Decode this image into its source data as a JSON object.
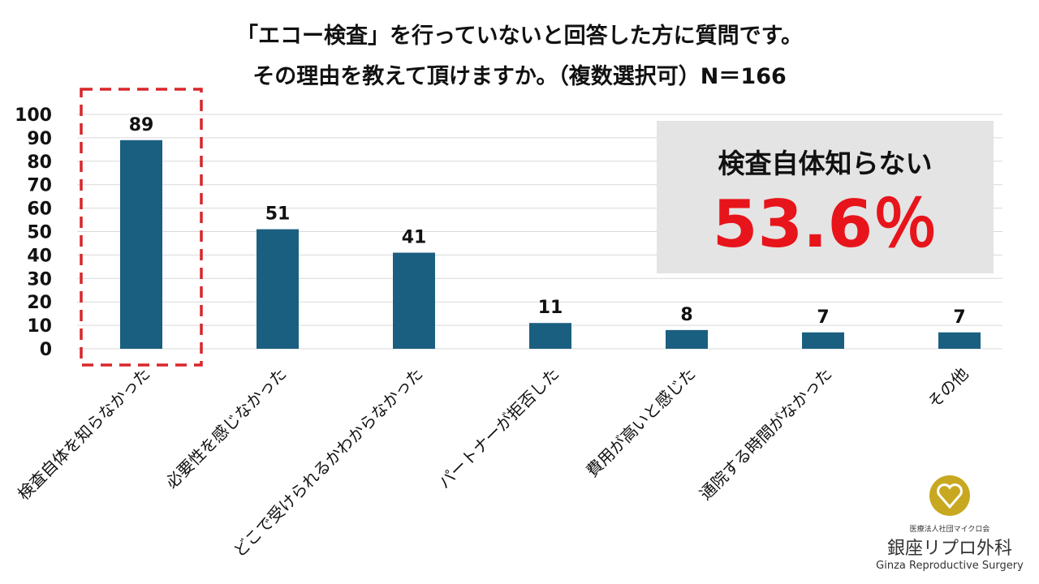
{
  "title_lines": [
    "「エコー検査」を行っていないと回答した方に質問です。",
    "その理由を教えて頂けますか。（複数選択可）N＝166"
  ],
  "chart_data": {
    "type": "bar",
    "title": "「エコー検査」を行っていないと回答した方に質問です。その理由を教えて頂けますか。（複数選択可）N＝166",
    "categories": [
      "検査自体を知らなかった",
      "必要性を感じなかった",
      "どこで受けられるかわからなかった",
      "パートナーが拒否した",
      "費用が高いと感じた",
      "通院する時間がなかった",
      "その他"
    ],
    "values": [
      89,
      51,
      41,
      11,
      8,
      7,
      7
    ],
    "yticks": [
      0,
      10,
      20,
      30,
      40,
      50,
      60,
      70,
      80,
      90,
      100
    ],
    "ylim": [
      0,
      100
    ],
    "grid": true,
    "highlighted_category": "検査自体を知らなかった",
    "bar_color": "#1b5f80",
    "highlight_color": "#d9262a"
  },
  "callout": {
    "heading": "検査自体知らない",
    "percent": "53.6％",
    "percent_color": "#e8141b"
  },
  "logo": {
    "sub": "医療法人社団マイクロ会",
    "main": "銀座リプロ外科",
    "english": "Ginza Reproductive Surgery",
    "color": "#c8a820"
  }
}
